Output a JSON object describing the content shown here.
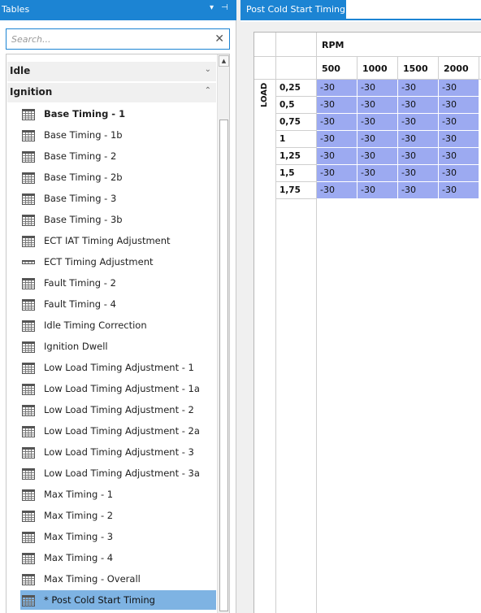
{
  "left_panel": {
    "title": "Tables",
    "dropdown_glyph": "▾",
    "pin_glyph": "⊣",
    "close_glyph": "✕",
    "search": {
      "placeholder": "Search...",
      "value": "",
      "clear_glyph": "✕"
    },
    "groups": [
      {
        "label": "Idle",
        "chevron": "⌄"
      },
      {
        "label": "Ignition",
        "chevron": "⌃"
      }
    ],
    "items": [
      "Base Timing - 1",
      "Base Timing - 1b",
      "Base Timing - 2",
      "Base Timing - 2b",
      "Base Timing - 3",
      "Base Timing - 3b",
      "ECT IAT Timing Adjustment",
      "ECT Timing Adjustment",
      "Fault Timing - 2",
      "Fault Timing - 4",
      "Idle Timing Correction",
      "Ignition Dwell",
      "Low Load Timing Adjustment - 1",
      "Low Load Timing Adjustment - 1a",
      "Low Load Timing Adjustment - 2",
      "Low Load Timing Adjustment - 2a",
      "Low Load Timing Adjustment - 3",
      "Low Load Timing Adjustment - 3a",
      "Max Timing - 1",
      "Max Timing - 2",
      "Max Timing - 3",
      "Max Timing - 4",
      "Max Timing - Overall",
      "*  Post Cold Start Timing"
    ],
    "bold_item": "Base Timing - 1",
    "selected_item": "*  Post Cold Start Timing",
    "scroll_up_glyph": "▲"
  },
  "tab": {
    "label": "Post Cold Start Timing"
  },
  "table": {
    "column_axis": "RPM",
    "row_axis": "LOAD",
    "columns": [
      "500",
      "1000",
      "1500",
      "2000"
    ],
    "rows": [
      "0,25",
      "0,5",
      "0,75",
      "1",
      "1,25",
      "1,5",
      "1,75"
    ],
    "values": [
      [
        "-30",
        "-30",
        "-30",
        "-30"
      ],
      [
        "-30",
        "-30",
        "-30",
        "-30"
      ],
      [
        "-30",
        "-30",
        "-30",
        "-30"
      ],
      [
        "-30",
        "-30",
        "-30",
        "-30"
      ],
      [
        "-30",
        "-30",
        "-30",
        "-30"
      ],
      [
        "-30",
        "-30",
        "-30",
        "-30"
      ],
      [
        "-30",
        "-30",
        "-30",
        "-30"
      ]
    ],
    "cell_color": "#9caaf1"
  },
  "colors": {
    "accent": "#1c84d3",
    "selection": "#7eb3e3"
  }
}
